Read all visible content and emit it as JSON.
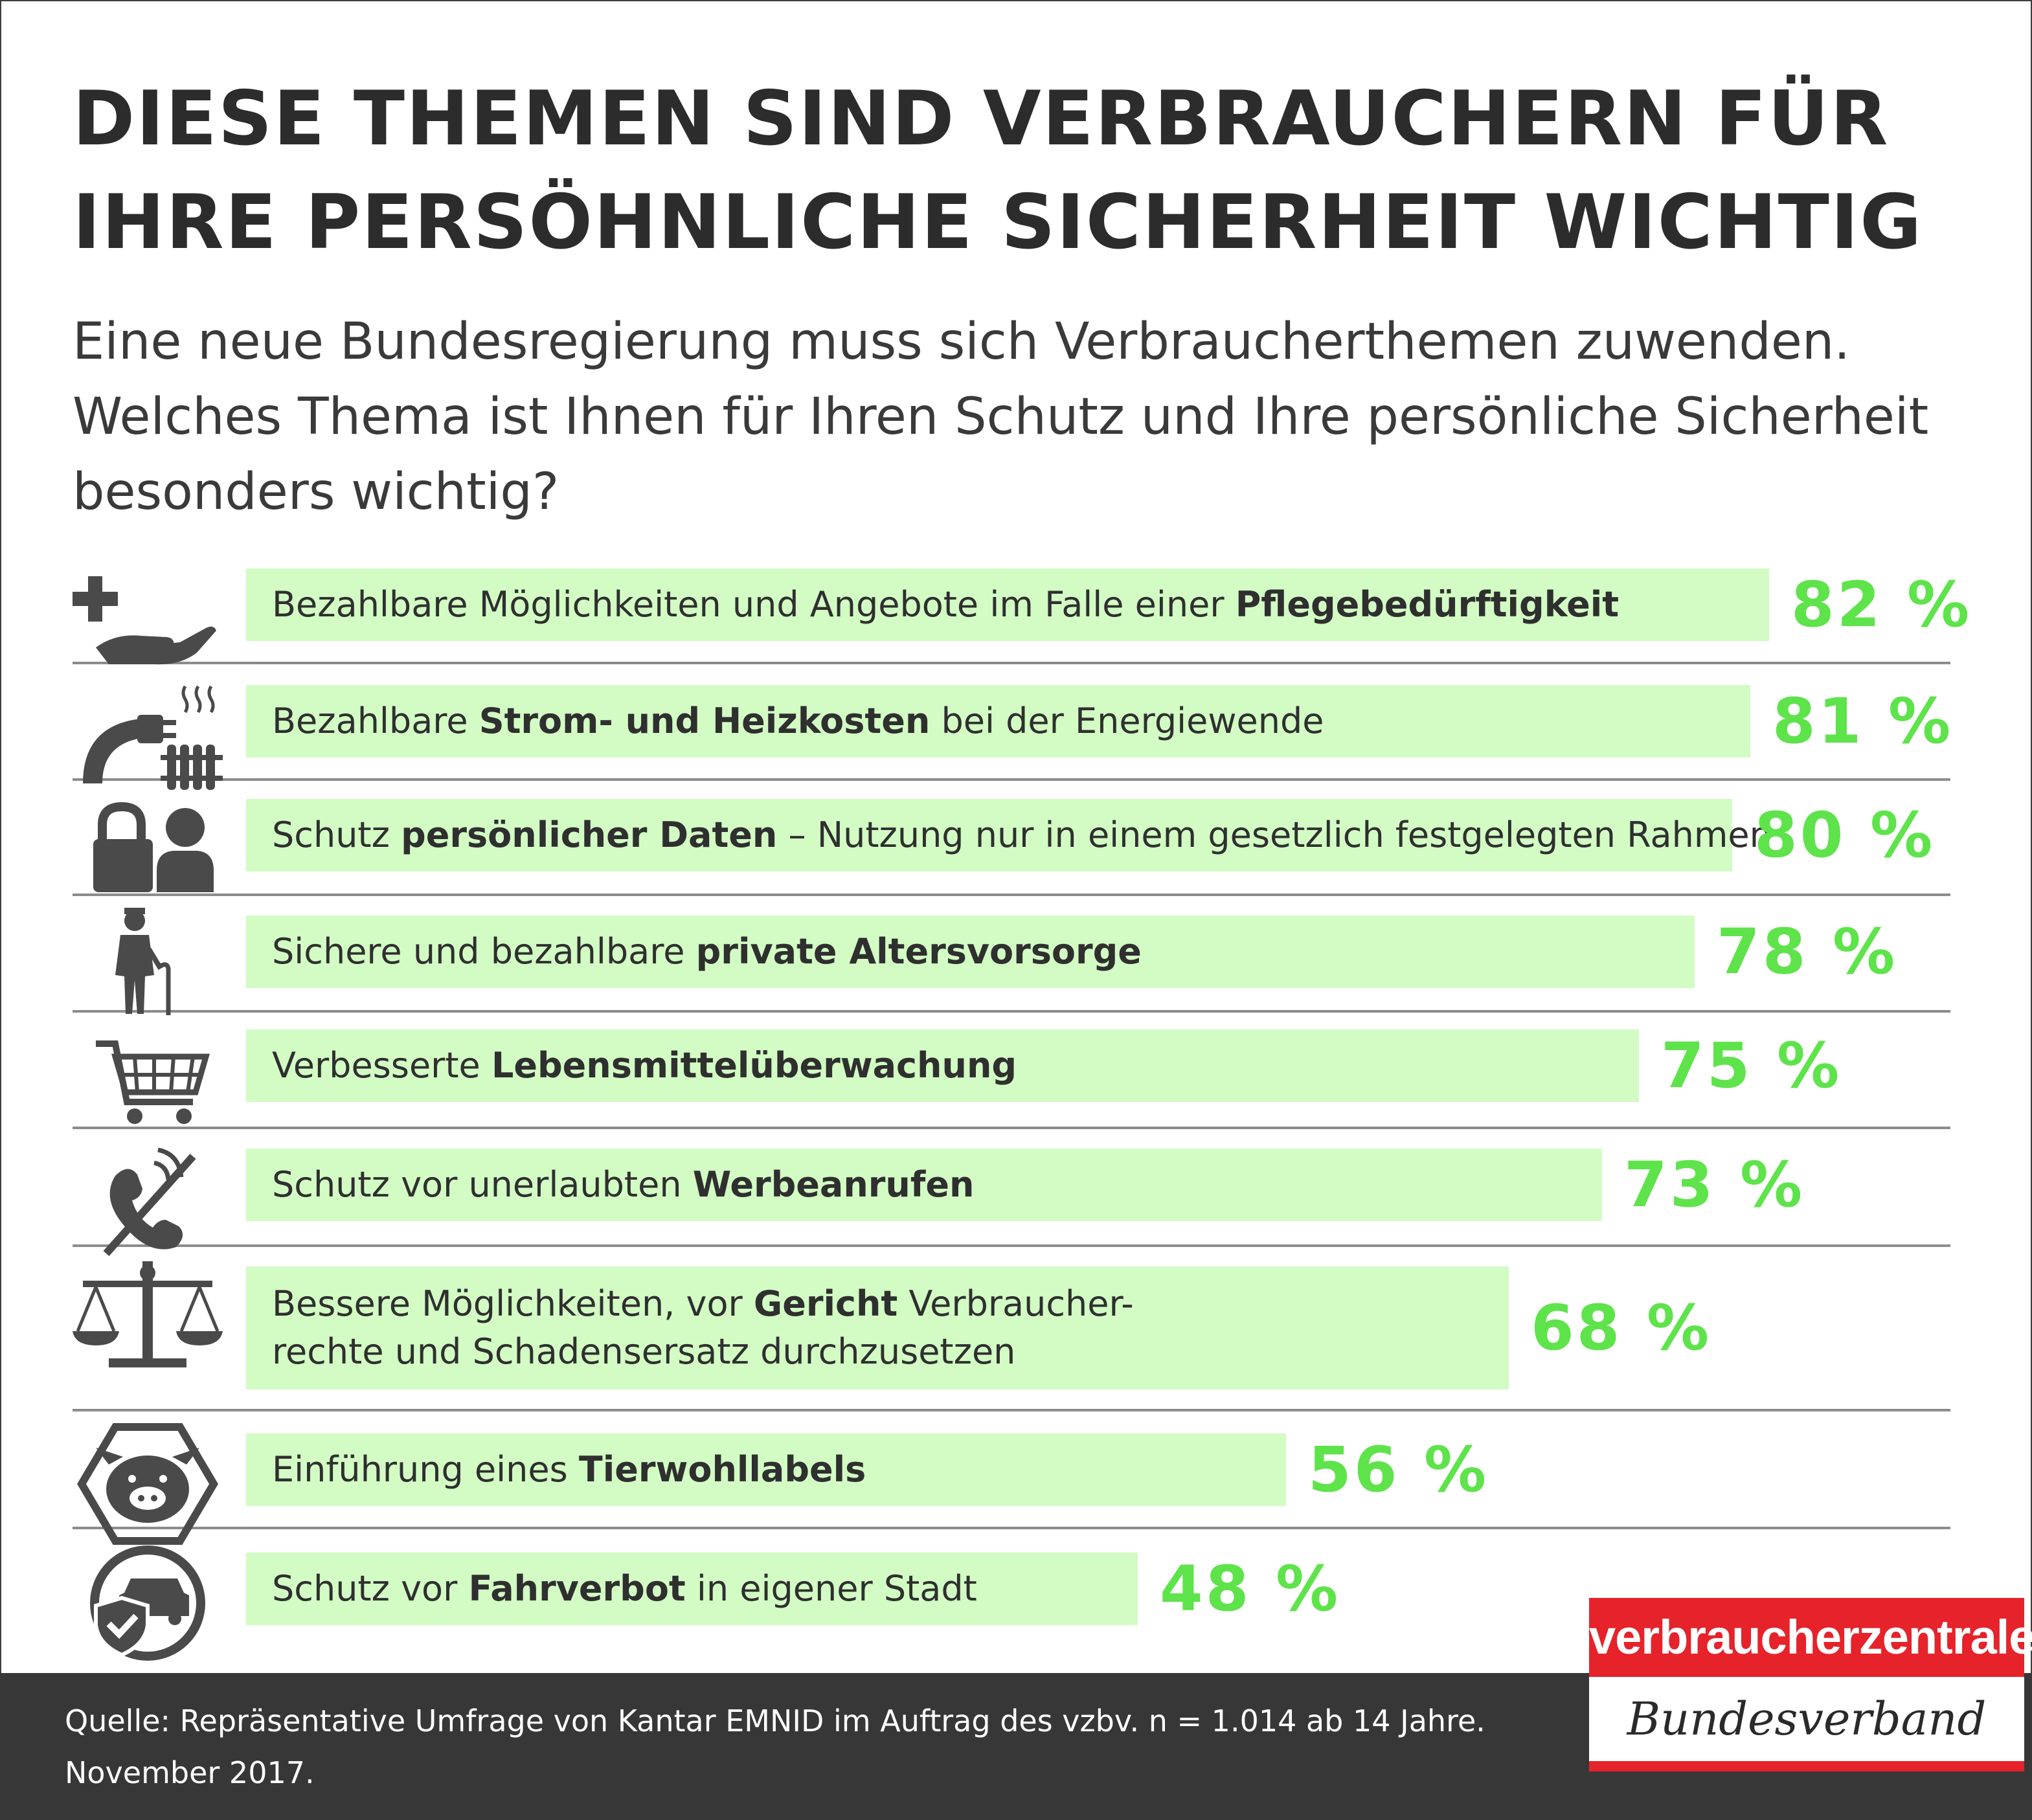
{
  "title_lines": [
    "DIESE THEMEN SIND VERBRAUCHERN FÜR",
    "IHRE PERSÖHNLICHE SICHERHEIT WICHTIG"
  ],
  "subtitle_lines": [
    "Eine neue Bundesregierung muss sich Verbraucherthemen zuwenden.",
    "Welches Thema ist Ihnen für Ihren Schutz und Ihre persönliche Sicherheit",
    "besonders wichtig?"
  ],
  "chart_data": {
    "type": "bar",
    "orientation": "horizontal",
    "unit": "%",
    "items": [
      {
        "label_parts": [
          [
            "Bezahlbare Möglichkeiten und Angebote im Falle einer ",
            false
          ],
          [
            "Pflegebedürftigkeit",
            true
          ]
        ],
        "value": 82,
        "value_label": "82 %",
        "icon": "care-hand-icon"
      },
      {
        "label_parts": [
          [
            "Bezahlbare ",
            false
          ],
          [
            "Strom- und Heizkosten",
            true
          ],
          [
            " bei der Energiewende",
            false
          ]
        ],
        "value": 81,
        "value_label": "81 %",
        "icon": "plug-radiator-icon"
      },
      {
        "label_parts": [
          [
            "Schutz ",
            false
          ],
          [
            "persönlicher Daten",
            true
          ],
          [
            " – Nutzung nur in einem gesetzlich festgelegten Rahmen",
            false
          ]
        ],
        "value": 80,
        "value_label": "80 %",
        "icon": "lock-person-icon"
      },
      {
        "label_parts": [
          [
            "Sichere und bezahlbare ",
            false
          ],
          [
            "private Altersvorsorge",
            true
          ]
        ],
        "value": 78,
        "value_label": "78 %",
        "icon": "elderly-person-icon"
      },
      {
        "label_parts": [
          [
            "Verbesserte ",
            false
          ],
          [
            "Lebensmittelüberwachung",
            true
          ]
        ],
        "value": 75,
        "value_label": "75 %",
        "icon": "shopping-cart-icon"
      },
      {
        "label_parts": [
          [
            "Schutz vor unerlaubten ",
            false
          ],
          [
            "Werbeanrufen",
            true
          ]
        ],
        "value": 73,
        "value_label": "73 %",
        "icon": "no-phone-calls-icon"
      },
      {
        "label_parts": [
          [
            "Bessere Möglichkeiten, vor ",
            false
          ],
          [
            "Gericht",
            true
          ],
          [
            " Verbraucher-\nrechte und Schadensersatz durchzusetzen",
            false
          ]
        ],
        "value": 68,
        "value_label": "68 %",
        "icon": "scales-icon"
      },
      {
        "label_parts": [
          [
            "Einführung eines ",
            false
          ],
          [
            "Tierwohllabels",
            true
          ]
        ],
        "value": 56,
        "value_label": "56 %",
        "icon": "pig-label-icon"
      },
      {
        "label_parts": [
          [
            "Schutz vor ",
            false
          ],
          [
            "Fahrverbot",
            true
          ],
          [
            " in eigener Stadt",
            false
          ]
        ],
        "value": 48,
        "value_label": "48 %",
        "icon": "car-shield-icon"
      }
    ]
  },
  "source_lines": [
    "Quelle: Repräsentative Umfrage von Kantar EMNID im Auftrag des vzbv. n = 1.014 ab 14 Jahre.",
    "November 2017."
  ],
  "logo": {
    "top": "verbraucherzentrale",
    "bottom": "Bundesverband"
  },
  "colors": {
    "bar": "#d2fcc4",
    "value": "#5ee34b",
    "icon": "#4a4a4a",
    "logo_red": "#e6222b",
    "footer": "#373737"
  }
}
